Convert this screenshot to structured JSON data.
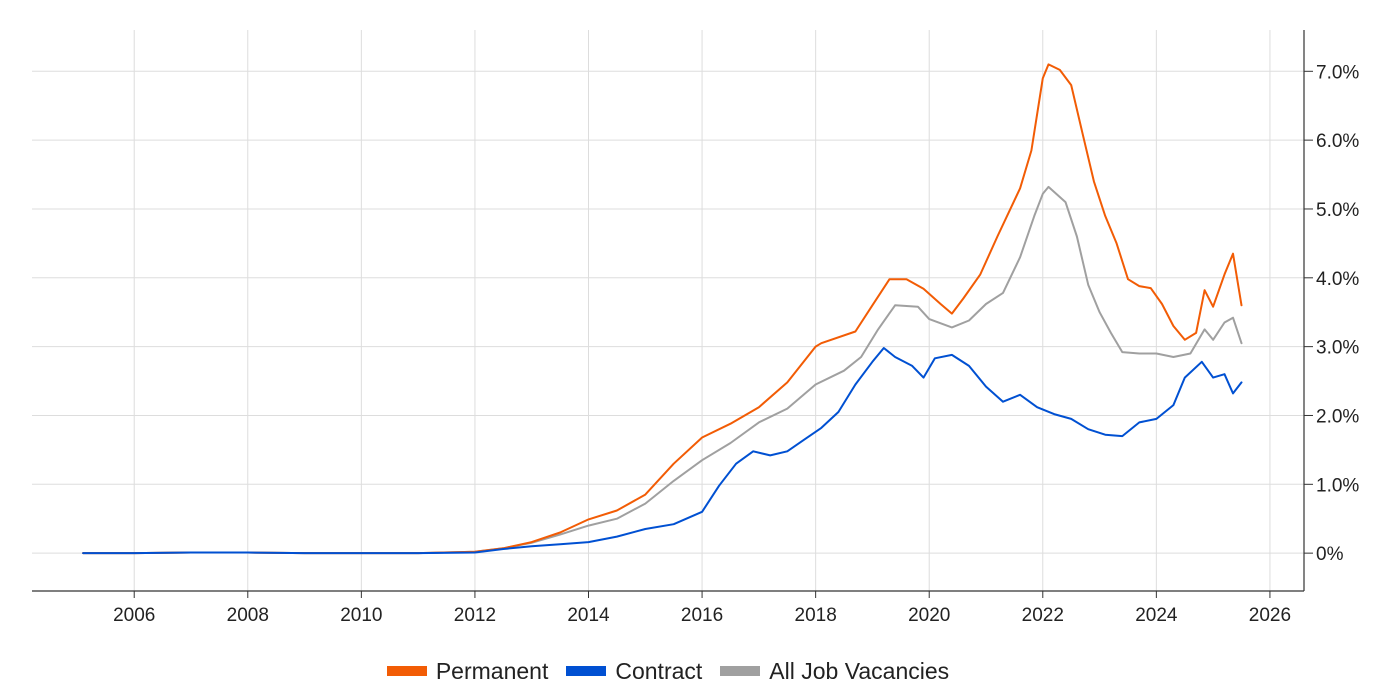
{
  "chart_data": {
    "type": "line",
    "x_ticks": [
      "2006",
      "2008",
      "2010",
      "2012",
      "2014",
      "2016",
      "2018",
      "2020",
      "2022",
      "2024",
      "2026"
    ],
    "y_ticks": [
      "0%",
      "1.0%",
      "2.0%",
      "3.0%",
      "4.0%",
      "5.0%",
      "6.0%",
      "7.0%"
    ],
    "xlim": [
      2004.2,
      2026.6
    ],
    "ylim": [
      -0.55,
      7.6
    ],
    "y_axis_position": "right",
    "grid": true,
    "legend_position": "bottom-center",
    "series": [
      {
        "name": "Permanent",
        "color": "#f25c05",
        "points": [
          [
            2005.1,
            0
          ],
          [
            2006,
            0
          ],
          [
            2007,
            0.01
          ],
          [
            2008,
            0.01
          ],
          [
            2009,
            0
          ],
          [
            2010,
            0
          ],
          [
            2011,
            0
          ],
          [
            2012,
            0.02
          ],
          [
            2012.5,
            0.07
          ],
          [
            2013,
            0.16
          ],
          [
            2013.5,
            0.3
          ],
          [
            2014,
            0.49
          ],
          [
            2014.5,
            0.62
          ],
          [
            2015,
            0.85
          ],
          [
            2015.5,
            1.3
          ],
          [
            2016,
            1.68
          ],
          [
            2016.5,
            1.88
          ],
          [
            2017,
            2.12
          ],
          [
            2017.5,
            2.48
          ],
          [
            2018,
            3.0
          ],
          [
            2018.1,
            3.05
          ],
          [
            2018.7,
            3.22
          ],
          [
            2019,
            3.6
          ],
          [
            2019.3,
            3.98
          ],
          [
            2019.6,
            3.98
          ],
          [
            2019.9,
            3.84
          ],
          [
            2020.2,
            3.62
          ],
          [
            2020.4,
            3.48
          ],
          [
            2020.6,
            3.7
          ],
          [
            2020.9,
            4.05
          ],
          [
            2021.2,
            4.6
          ],
          [
            2021.6,
            5.3
          ],
          [
            2021.8,
            5.85
          ],
          [
            2022.0,
            6.9
          ],
          [
            2022.1,
            7.1
          ],
          [
            2022.3,
            7.02
          ],
          [
            2022.5,
            6.8
          ],
          [
            2022.7,
            6.1
          ],
          [
            2022.9,
            5.4
          ],
          [
            2023.1,
            4.9
          ],
          [
            2023.3,
            4.5
          ],
          [
            2023.5,
            3.98
          ],
          [
            2023.7,
            3.88
          ],
          [
            2023.9,
            3.85
          ],
          [
            2024.1,
            3.62
          ],
          [
            2024.3,
            3.3
          ],
          [
            2024.5,
            3.1
          ],
          [
            2024.7,
            3.2
          ],
          [
            2024.85,
            3.82
          ],
          [
            2025.0,
            3.58
          ],
          [
            2025.2,
            4.05
          ],
          [
            2025.35,
            4.35
          ],
          [
            2025.5,
            3.6
          ]
        ]
      },
      {
        "name": "Contract",
        "color": "#0050d2",
        "points": [
          [
            2005.1,
            0
          ],
          [
            2006,
            0
          ],
          [
            2007,
            0.01
          ],
          [
            2008,
            0.01
          ],
          [
            2009,
            0
          ],
          [
            2010,
            0
          ],
          [
            2011,
            0
          ],
          [
            2012,
            0.01
          ],
          [
            2012.5,
            0.06
          ],
          [
            2013,
            0.1
          ],
          [
            2013.5,
            0.13
          ],
          [
            2014,
            0.16
          ],
          [
            2014.5,
            0.24
          ],
          [
            2015,
            0.35
          ],
          [
            2015.5,
            0.42
          ],
          [
            2016,
            0.6
          ],
          [
            2016.3,
            0.98
          ],
          [
            2016.6,
            1.3
          ],
          [
            2016.9,
            1.48
          ],
          [
            2017.2,
            1.42
          ],
          [
            2017.5,
            1.48
          ],
          [
            2017.8,
            1.65
          ],
          [
            2018.1,
            1.82
          ],
          [
            2018.4,
            2.05
          ],
          [
            2018.7,
            2.45
          ],
          [
            2019.0,
            2.78
          ],
          [
            2019.2,
            2.98
          ],
          [
            2019.4,
            2.85
          ],
          [
            2019.7,
            2.72
          ],
          [
            2019.9,
            2.55
          ],
          [
            2020.1,
            2.83
          ],
          [
            2020.4,
            2.88
          ],
          [
            2020.7,
            2.72
          ],
          [
            2021.0,
            2.42
          ],
          [
            2021.3,
            2.2
          ],
          [
            2021.6,
            2.3
          ],
          [
            2021.9,
            2.12
          ],
          [
            2022.2,
            2.02
          ],
          [
            2022.5,
            1.95
          ],
          [
            2022.8,
            1.8
          ],
          [
            2023.1,
            1.72
          ],
          [
            2023.4,
            1.7
          ],
          [
            2023.7,
            1.9
          ],
          [
            2024.0,
            1.95
          ],
          [
            2024.3,
            2.15
          ],
          [
            2024.5,
            2.55
          ],
          [
            2024.8,
            2.78
          ],
          [
            2025.0,
            2.55
          ],
          [
            2025.2,
            2.6
          ],
          [
            2025.35,
            2.32
          ],
          [
            2025.5,
            2.48
          ]
        ]
      },
      {
        "name": "All Job Vacancies",
        "color": "#a0a0a0",
        "points": [
          [
            2005.1,
            0
          ],
          [
            2006,
            0
          ],
          [
            2007,
            0.01
          ],
          [
            2008,
            0.01
          ],
          [
            2009,
            0
          ],
          [
            2010,
            0
          ],
          [
            2011,
            0
          ],
          [
            2012,
            0.02
          ],
          [
            2012.5,
            0.07
          ],
          [
            2013,
            0.15
          ],
          [
            2013.5,
            0.27
          ],
          [
            2014,
            0.4
          ],
          [
            2014.5,
            0.5
          ],
          [
            2015,
            0.72
          ],
          [
            2015.5,
            1.05
          ],
          [
            2016,
            1.35
          ],
          [
            2016.5,
            1.6
          ],
          [
            2017,
            1.9
          ],
          [
            2017.5,
            2.1
          ],
          [
            2018,
            2.45
          ],
          [
            2018.5,
            2.65
          ],
          [
            2018.8,
            2.85
          ],
          [
            2019.1,
            3.25
          ],
          [
            2019.4,
            3.6
          ],
          [
            2019.8,
            3.58
          ],
          [
            2020.0,
            3.4
          ],
          [
            2020.4,
            3.28
          ],
          [
            2020.7,
            3.38
          ],
          [
            2021.0,
            3.62
          ],
          [
            2021.3,
            3.78
          ],
          [
            2021.6,
            4.3
          ],
          [
            2021.85,
            4.9
          ],
          [
            2022.0,
            5.22
          ],
          [
            2022.1,
            5.32
          ],
          [
            2022.4,
            5.1
          ],
          [
            2022.6,
            4.6
          ],
          [
            2022.8,
            3.9
          ],
          [
            2023.0,
            3.5
          ],
          [
            2023.2,
            3.2
          ],
          [
            2023.4,
            2.92
          ],
          [
            2023.7,
            2.9
          ],
          [
            2024.0,
            2.9
          ],
          [
            2024.3,
            2.85
          ],
          [
            2024.6,
            2.9
          ],
          [
            2024.85,
            3.25
          ],
          [
            2025.0,
            3.1
          ],
          [
            2025.2,
            3.35
          ],
          [
            2025.35,
            3.42
          ],
          [
            2025.5,
            3.05
          ]
        ]
      }
    ]
  }
}
